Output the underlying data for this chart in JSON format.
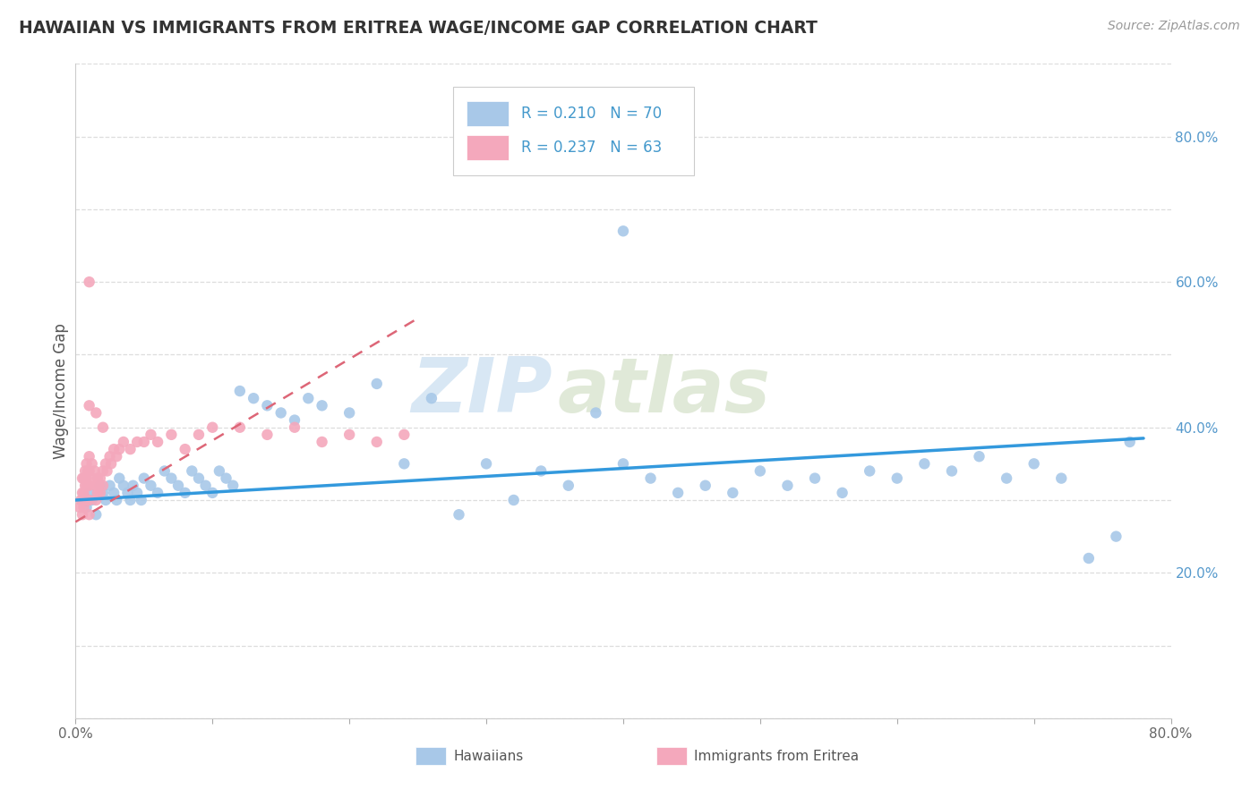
{
  "title": "HAWAIIAN VS IMMIGRANTS FROM ERITREA WAGE/INCOME GAP CORRELATION CHART",
  "source": "Source: ZipAtlas.com",
  "ylabel": "Wage/Income Gap",
  "xlim": [
    0.0,
    0.8
  ],
  "ylim": [
    0.0,
    0.9
  ],
  "hawaiian_color": "#a8c8e8",
  "eritrea_color": "#f4a8bc",
  "hawaiian_line_color": "#3399dd",
  "eritrea_line_color": "#dd6677",
  "background_color": "#ffffff",
  "grid_color": "#dddddd",
  "right_tick_color": "#5599cc",
  "title_color": "#333333",
  "source_color": "#999999",
  "legend_text_color": "#4499cc",
  "watermark_zip_color": "#c8ddf0",
  "watermark_atlas_color": "#d8e8c8",
  "hawaiian_scatter_x": [
    0.005,
    0.008,
    0.01,
    0.012,
    0.015,
    0.018,
    0.02,
    0.022,
    0.025,
    0.028,
    0.03,
    0.032,
    0.035,
    0.038,
    0.04,
    0.042,
    0.045,
    0.048,
    0.05,
    0.055,
    0.06,
    0.065,
    0.07,
    0.075,
    0.08,
    0.085,
    0.09,
    0.095,
    0.1,
    0.105,
    0.11,
    0.115,
    0.12,
    0.13,
    0.14,
    0.15,
    0.16,
    0.17,
    0.18,
    0.2,
    0.22,
    0.24,
    0.26,
    0.28,
    0.3,
    0.32,
    0.34,
    0.36,
    0.38,
    0.4,
    0.42,
    0.44,
    0.46,
    0.48,
    0.5,
    0.52,
    0.54,
    0.56,
    0.58,
    0.6,
    0.62,
    0.64,
    0.66,
    0.68,
    0.7,
    0.72,
    0.74,
    0.76,
    0.4,
    0.77
  ],
  "hawaiian_scatter_y": [
    0.3,
    0.29,
    0.31,
    0.3,
    0.28,
    0.32,
    0.31,
    0.3,
    0.32,
    0.31,
    0.3,
    0.33,
    0.32,
    0.31,
    0.3,
    0.32,
    0.31,
    0.3,
    0.33,
    0.32,
    0.31,
    0.34,
    0.33,
    0.32,
    0.31,
    0.34,
    0.33,
    0.32,
    0.31,
    0.34,
    0.33,
    0.32,
    0.45,
    0.44,
    0.43,
    0.42,
    0.41,
    0.44,
    0.43,
    0.42,
    0.46,
    0.35,
    0.44,
    0.28,
    0.35,
    0.3,
    0.34,
    0.32,
    0.42,
    0.35,
    0.33,
    0.31,
    0.32,
    0.31,
    0.34,
    0.32,
    0.33,
    0.31,
    0.34,
    0.33,
    0.35,
    0.34,
    0.36,
    0.33,
    0.35,
    0.33,
    0.22,
    0.25,
    0.67,
    0.38
  ],
  "eritrea_scatter_x": [
    0.003,
    0.004,
    0.005,
    0.005,
    0.005,
    0.006,
    0.006,
    0.006,
    0.007,
    0.007,
    0.007,
    0.008,
    0.008,
    0.008,
    0.008,
    0.009,
    0.009,
    0.009,
    0.01,
    0.01,
    0.01,
    0.01,
    0.01,
    0.012,
    0.012,
    0.014,
    0.015,
    0.015,
    0.016,
    0.016,
    0.017,
    0.018,
    0.018,
    0.02,
    0.02,
    0.022,
    0.023,
    0.025,
    0.026,
    0.028,
    0.03,
    0.032,
    0.035,
    0.04,
    0.045,
    0.05,
    0.055,
    0.06,
    0.07,
    0.08,
    0.09,
    0.1,
    0.12,
    0.14,
    0.16,
    0.18,
    0.2,
    0.22,
    0.24,
    0.02,
    0.015,
    0.01,
    0.01
  ],
  "eritrea_scatter_y": [
    0.29,
    0.3,
    0.28,
    0.31,
    0.33,
    0.29,
    0.31,
    0.33,
    0.3,
    0.32,
    0.34,
    0.3,
    0.32,
    0.33,
    0.35,
    0.3,
    0.32,
    0.34,
    0.28,
    0.3,
    0.32,
    0.34,
    0.36,
    0.33,
    0.35,
    0.34,
    0.3,
    0.32,
    0.31,
    0.33,
    0.32,
    0.31,
    0.33,
    0.32,
    0.34,
    0.35,
    0.34,
    0.36,
    0.35,
    0.37,
    0.36,
    0.37,
    0.38,
    0.37,
    0.38,
    0.38,
    0.39,
    0.38,
    0.39,
    0.37,
    0.39,
    0.4,
    0.4,
    0.39,
    0.4,
    0.38,
    0.39,
    0.38,
    0.39,
    0.4,
    0.42,
    0.43,
    0.6
  ],
  "hawaiian_trend_x": [
    0.0,
    0.78
  ],
  "hawaiian_trend_y": [
    0.3,
    0.385
  ],
  "eritrea_trend_x": [
    0.0,
    0.25
  ],
  "eritrea_trend_y": [
    0.27,
    0.55
  ],
  "x_ticks": [
    0.0,
    0.1,
    0.2,
    0.3,
    0.4,
    0.5,
    0.6,
    0.7,
    0.8
  ],
  "x_tick_labels": [
    "0.0%",
    "",
    "",
    "",
    "",
    "",
    "",
    "",
    "80.0%"
  ],
  "y_ticks": [
    0.0,
    0.1,
    0.2,
    0.3,
    0.4,
    0.5,
    0.6,
    0.7,
    0.8,
    0.9
  ],
  "y_right_labels": [
    "",
    "",
    "20.0%",
    "",
    "40.0%",
    "",
    "60.0%",
    "",
    "80.0%",
    ""
  ]
}
